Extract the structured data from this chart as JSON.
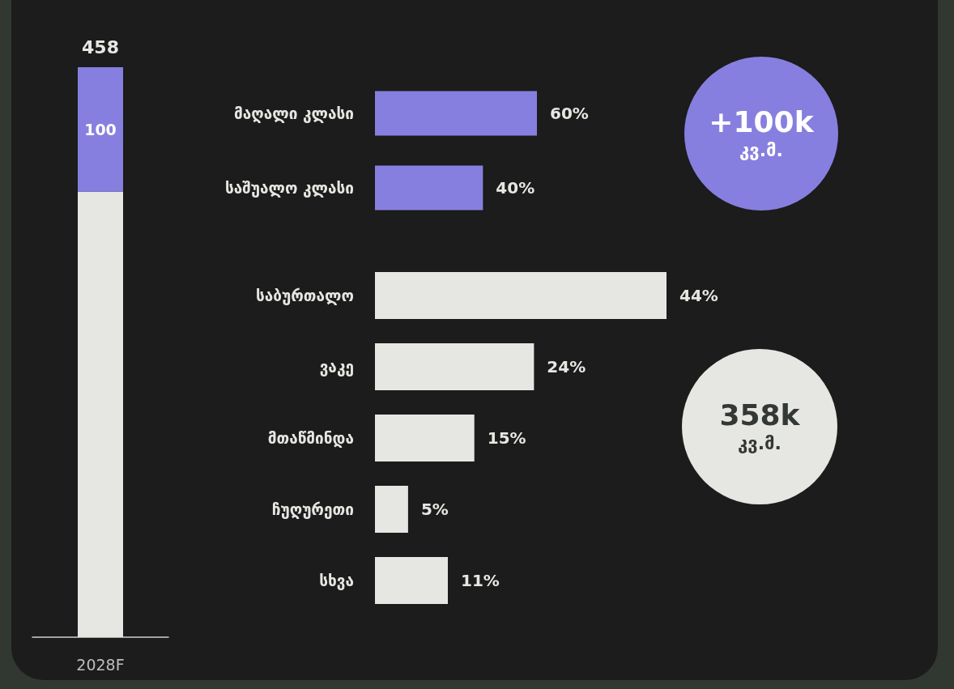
{
  "chart_data": [
    {
      "type": "bar",
      "stacked": true,
      "categories": [
        "2028F"
      ],
      "series": [
        {
          "color": "#e6e6e2",
          "values": [
            358
          ],
          "value_labels": [
            null
          ]
        },
        {
          "color": "#877fdf",
          "values": [
            100
          ],
          "value_labels": [
            "100"
          ]
        }
      ],
      "totals": [
        "458"
      ]
    },
    {
      "type": "bar",
      "orientation": "horizontal",
      "categories": [
        "მაღალი კლასი",
        "საშუალო კლასი"
      ],
      "values": [
        60,
        40
      ],
      "value_labels": [
        "60%",
        "40%"
      ],
      "color": "#877fdf",
      "annotations": [
        "+100k",
        "კვ.მ."
      ]
    },
    {
      "type": "bar",
      "orientation": "horizontal",
      "categories": [
        "საბურთალო",
        "ვაკე",
        "მთაწმინდა",
        "ჩუღურეთი",
        "სხვა"
      ],
      "values": [
        44,
        24,
        15,
        5,
        11
      ],
      "value_labels": [
        "44%",
        "24%",
        "15%",
        "5%",
        "11%"
      ],
      "color": "#e6e6e2",
      "annotations": [
        "358k",
        "კვ.მ."
      ]
    }
  ]
}
